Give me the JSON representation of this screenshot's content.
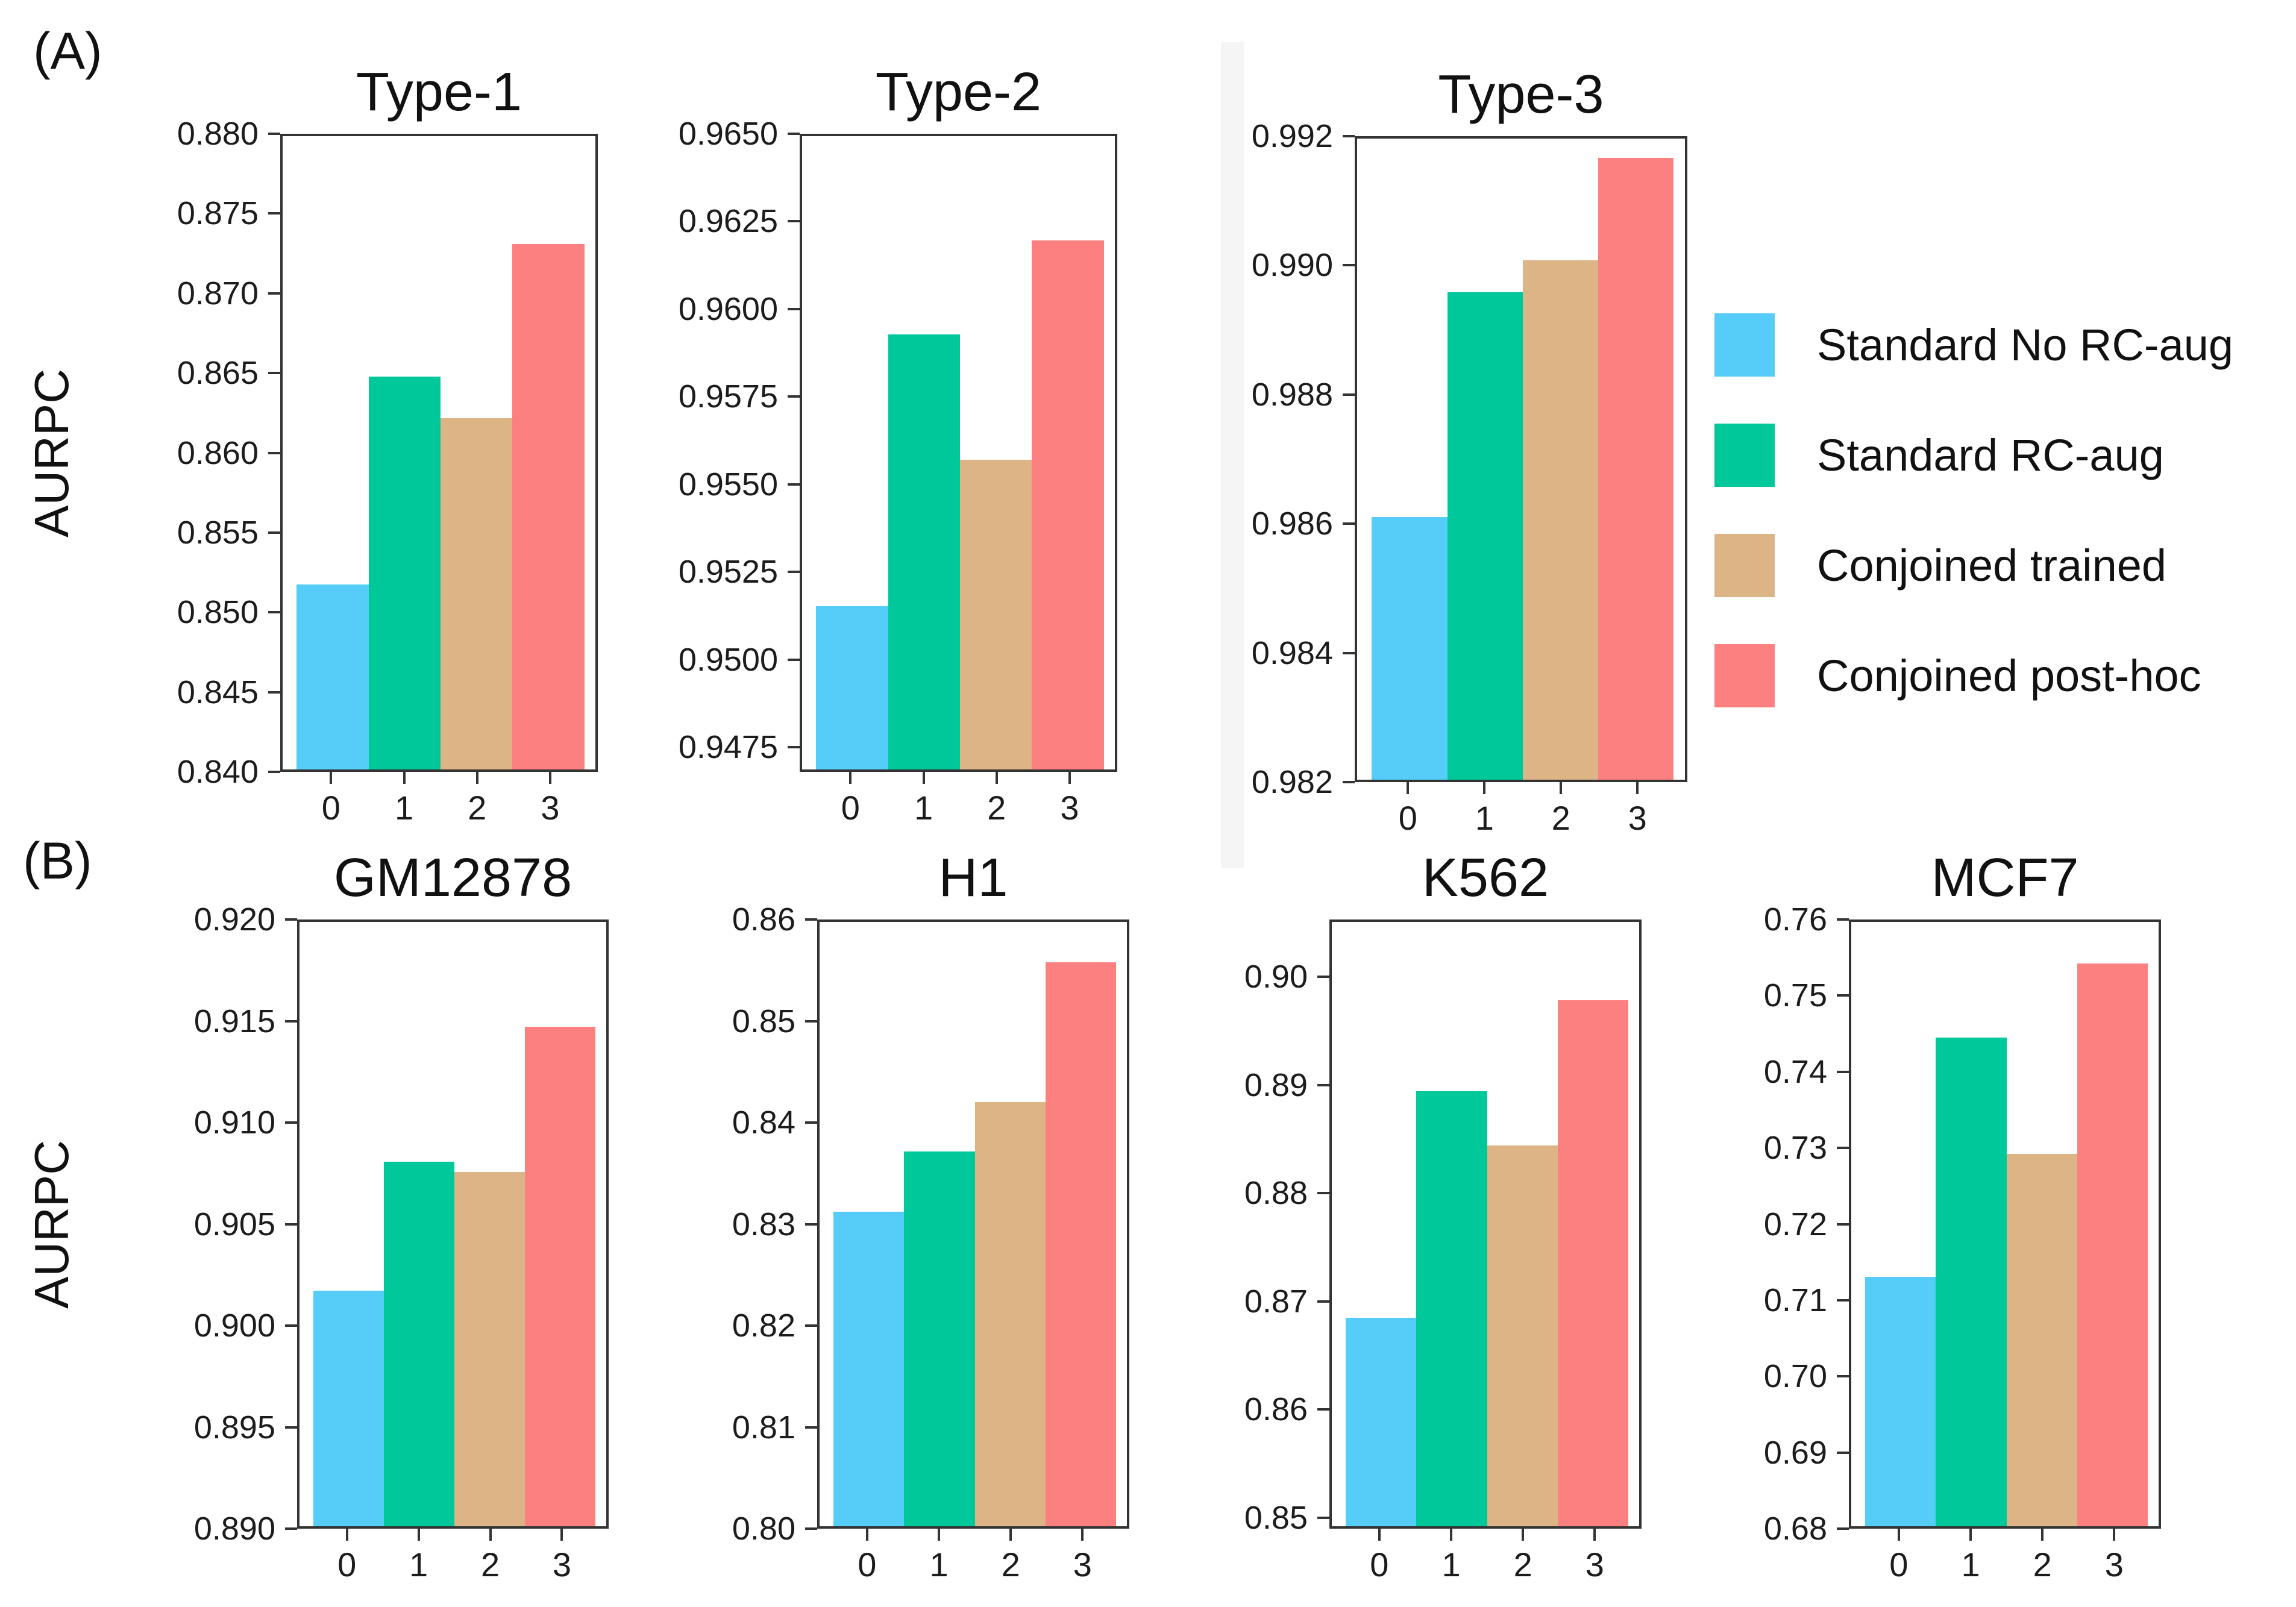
{
  "figure": {
    "panel_a_label": "(A)",
    "panel_b_label": "(B)",
    "ylabel": "AURPC",
    "background": "#ffffff"
  },
  "colors": {
    "bars": [
      "#55cdf8",
      "#00c89b",
      "#ddb485",
      "#fc8080"
    ],
    "axis": "#333333",
    "text": "#1c1c1c"
  },
  "legend": {
    "position": "right-of-panel-a",
    "items": [
      {
        "label": "Standard No RC-aug",
        "color": "#55cdf8"
      },
      {
        "label": "Standard RC-aug",
        "color": "#00c89b"
      },
      {
        "label": "Conjoined trained",
        "color": "#ddb485"
      },
      {
        "label": "Conjoined post-hoc",
        "color": "#fc8080"
      }
    ]
  },
  "chart_data": [
    {
      "id": "type1",
      "type": "bar",
      "panel": "A",
      "title": "Type-1",
      "categories": [
        "0",
        "1",
        "2",
        "3"
      ],
      "series_names": [
        "Standard No RC-aug",
        "Standard RC-aug",
        "Conjoined trained",
        "Conjoined post-hoc"
      ],
      "values": [
        0.8517,
        0.8648,
        0.8622,
        0.8732
      ],
      "ylabel": "AURPC",
      "ylim": [
        0.84,
        0.88
      ],
      "grid": false,
      "yticks": [
        0.84,
        0.845,
        0.85,
        0.855,
        0.86,
        0.865,
        0.87,
        0.875,
        0.88
      ],
      "ytick_labels": [
        "0.840",
        "0.845",
        "0.850",
        "0.855",
        "0.860",
        "0.865",
        "0.870",
        "0.875",
        "0.880"
      ]
    },
    {
      "id": "type2",
      "type": "bar",
      "panel": "A",
      "title": "Type-2",
      "categories": [
        "0",
        "1",
        "2",
        "3"
      ],
      "series_names": [
        "Standard No RC-aug",
        "Standard RC-aug",
        "Conjoined trained",
        "Conjoined post-hoc"
      ],
      "values": [
        0.9515,
        0.9593,
        0.9557,
        0.962
      ],
      "ylabel": "AURPC",
      "ylim": [
        0.9468,
        0.965
      ],
      "grid": false,
      "yticks": [
        0.9475,
        0.95,
        0.9525,
        0.955,
        0.9575,
        0.96,
        0.9625,
        0.965
      ],
      "ytick_labels": [
        "0.9475",
        "0.9500",
        "0.9525",
        "0.9550",
        "0.9575",
        "0.9600",
        "0.9625",
        "0.9650"
      ]
    },
    {
      "id": "type3",
      "type": "bar",
      "panel": "A",
      "title": "Type-3",
      "categories": [
        "0",
        "1",
        "2",
        "3"
      ],
      "series_names": [
        "Standard No RC-aug",
        "Standard RC-aug",
        "Conjoined trained",
        "Conjoined post-hoc"
      ],
      "values": [
        0.9861,
        0.9896,
        0.9901,
        0.9917
      ],
      "ylabel": "AURPC",
      "ylim": [
        0.982,
        0.992
      ],
      "grid": false,
      "yticks": [
        0.982,
        0.984,
        0.986,
        0.988,
        0.99,
        0.992
      ],
      "ytick_labels": [
        "0.982",
        "0.984",
        "0.986",
        "0.988",
        "0.990",
        "0.992"
      ]
    },
    {
      "id": "gm12878",
      "type": "bar",
      "panel": "B",
      "title": "GM12878",
      "categories": [
        "0",
        "1",
        "2",
        "3"
      ],
      "series_names": [
        "Standard No RC-aug",
        "Standard RC-aug",
        "Conjoined trained",
        "Conjoined post-hoc"
      ],
      "values": [
        0.9017,
        0.9081,
        0.9076,
        0.9148
      ],
      "ylabel": "AURPC",
      "ylim": [
        0.89,
        0.92
      ],
      "grid": false,
      "yticks": [
        0.89,
        0.895,
        0.9,
        0.905,
        0.91,
        0.915,
        0.92
      ],
      "ytick_labels": [
        "0.890",
        "0.895",
        "0.900",
        "0.905",
        "0.910",
        "0.915",
        "0.920"
      ]
    },
    {
      "id": "h1",
      "type": "bar",
      "panel": "B",
      "title": "H1",
      "categories": [
        "0",
        "1",
        "2",
        "3"
      ],
      "series_names": [
        "Standard No RC-aug",
        "Standard RC-aug",
        "Conjoined trained",
        "Conjoined post-hoc"
      ],
      "values": [
        0.8312,
        0.8372,
        0.8421,
        0.856
      ],
      "ylabel": "AURPC",
      "ylim": [
        0.8,
        0.86
      ],
      "grid": false,
      "yticks": [
        0.8,
        0.81,
        0.82,
        0.83,
        0.84,
        0.85,
        0.86
      ],
      "ytick_labels": [
        "0.80",
        "0.81",
        "0.82",
        "0.83",
        "0.84",
        "0.85",
        "0.86"
      ]
    },
    {
      "id": "k562",
      "type": "bar",
      "panel": "B",
      "title": "K562",
      "categories": [
        "0",
        "1",
        "2",
        "3"
      ],
      "series_names": [
        "Standard No RC-aug",
        "Standard RC-aug",
        "Conjoined trained",
        "Conjoined post-hoc"
      ],
      "values": [
        0.8684,
        0.8895,
        0.8845,
        0.898
      ],
      "ylabel": "AURPC",
      "ylim": [
        0.849,
        0.9053
      ],
      "grid": false,
      "yticks": [
        0.85,
        0.86,
        0.87,
        0.88,
        0.89,
        0.9
      ],
      "ytick_labels": [
        "0.85",
        "0.86",
        "0.87",
        "0.88",
        "0.89",
        "0.90"
      ]
    },
    {
      "id": "mcf7",
      "type": "bar",
      "panel": "B",
      "title": "MCF7",
      "categories": [
        "0",
        "1",
        "2",
        "3"
      ],
      "series_names": [
        "Standard No RC-aug",
        "Standard RC-aug",
        "Conjoined trained",
        "Conjoined post-hoc"
      ],
      "values": [
        0.713,
        0.7447,
        0.7293,
        0.7545
      ],
      "ylabel": "AURPC",
      "ylim": [
        0.68,
        0.76
      ],
      "grid": false,
      "yticks": [
        0.68,
        0.69,
        0.7,
        0.71,
        0.72,
        0.73,
        0.74,
        0.75,
        0.76
      ],
      "ytick_labels": [
        "0.68",
        "0.69",
        "0.70",
        "0.71",
        "0.72",
        "0.73",
        "0.74",
        "0.75",
        "0.76"
      ]
    }
  ]
}
